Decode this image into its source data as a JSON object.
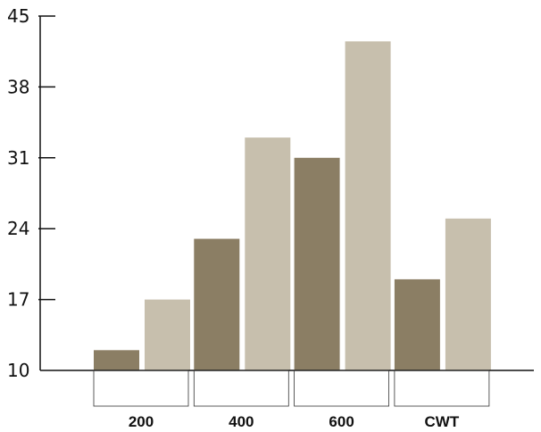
{
  "chart_data": {
    "type": "bar",
    "categories": [
      "200",
      "400",
      "600",
      "CWT"
    ],
    "series": [
      {
        "values": [
          12,
          23,
          31,
          19
        ],
        "color": "#8b7e64"
      },
      {
        "values": [
          17,
          33,
          42.5,
          25
        ],
        "color": "#c7bfad"
      }
    ],
    "title": "",
    "xlabel": "",
    "ylabel": "",
    "ylim": [
      10,
      45
    ],
    "yticks": [
      "10",
      "17",
      "24",
      "31",
      "38",
      "45"
    ],
    "grid": false,
    "legend": "none"
  }
}
